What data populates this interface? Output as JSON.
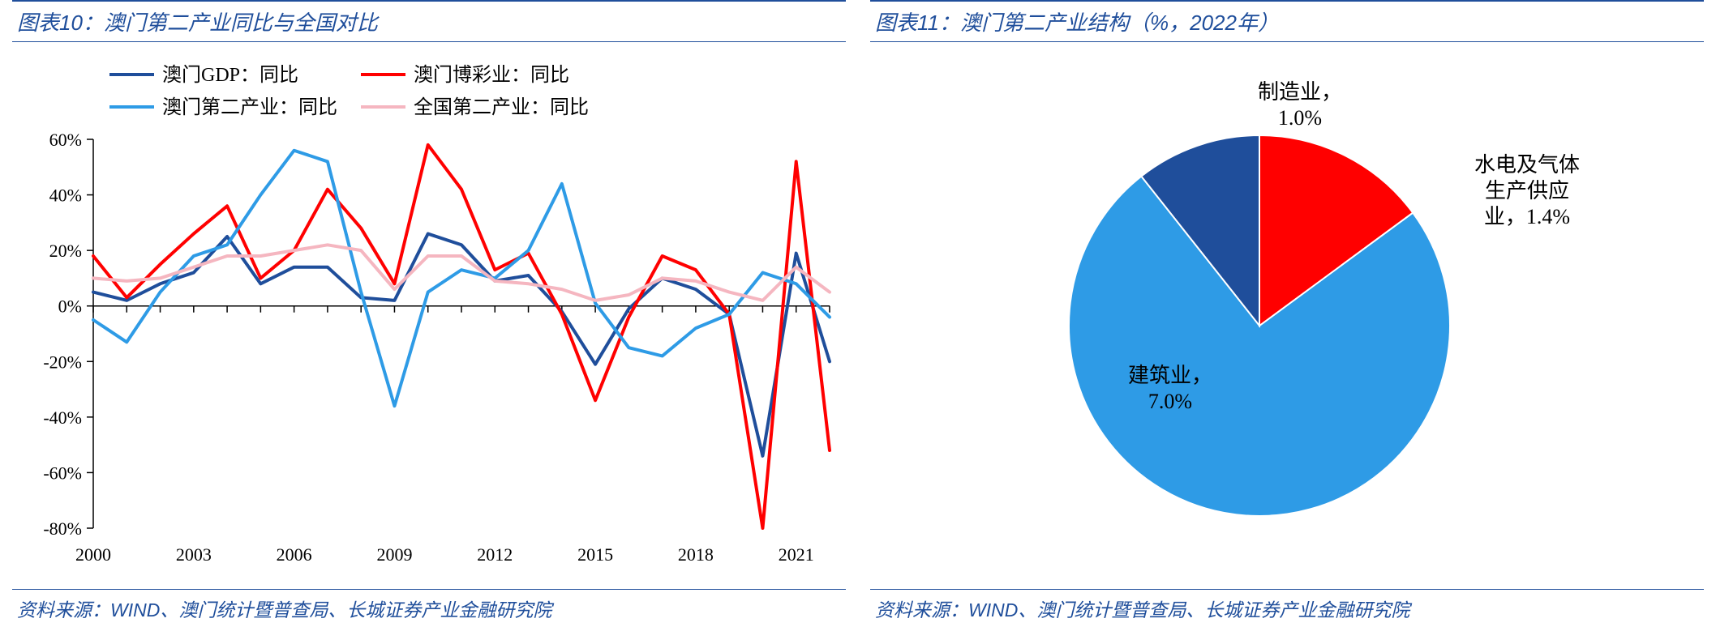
{
  "left": {
    "title": "图表10：澳门第二产业同比与全国对比",
    "source_label": "资料来源：",
    "source": "WIND、澳门统计暨普查局、长城证券产业金融研究院",
    "chart": {
      "type": "line",
      "ylim": [
        -80,
        60
      ],
      "ytick_step": 20,
      "y_suffix": "%",
      "xlim": [
        2000,
        2022
      ],
      "xticks": [
        2000,
        2003,
        2006,
        2009,
        2012,
        2015,
        2018,
        2021
      ],
      "background_color": "#ffffff",
      "axis_color": "#000000",
      "tick_color": "#000000",
      "series": [
        {
          "name": "澳门GDP：同比",
          "color": "#1f4e9b",
          "width": 4,
          "data": [
            {
              "x": 2000,
              "y": 5
            },
            {
              "x": 2001,
              "y": 2
            },
            {
              "x": 2002,
              "y": 8
            },
            {
              "x": 2003,
              "y": 12
            },
            {
              "x": 2004,
              "y": 25
            },
            {
              "x": 2005,
              "y": 8
            },
            {
              "x": 2006,
              "y": 14
            },
            {
              "x": 2007,
              "y": 14
            },
            {
              "x": 2008,
              "y": 3
            },
            {
              "x": 2009,
              "y": 2
            },
            {
              "x": 2010,
              "y": 26
            },
            {
              "x": 2011,
              "y": 22
            },
            {
              "x": 2012,
              "y": 9
            },
            {
              "x": 2013,
              "y": 11
            },
            {
              "x": 2014,
              "y": -2
            },
            {
              "x": 2015,
              "y": -21
            },
            {
              "x": 2016,
              "y": -1
            },
            {
              "x": 2017,
              "y": 10
            },
            {
              "x": 2018,
              "y": 6
            },
            {
              "x": 2019,
              "y": -3
            },
            {
              "x": 2020,
              "y": -54
            },
            {
              "x": 2021,
              "y": 19
            },
            {
              "x": 2022,
              "y": -20
            }
          ]
        },
        {
          "name": "澳门博彩业：同比",
          "color": "#ff0000",
          "width": 4,
          "data": [
            {
              "x": 2000,
              "y": 18
            },
            {
              "x": 2001,
              "y": 3
            },
            {
              "x": 2002,
              "y": 15
            },
            {
              "x": 2003,
              "y": 26
            },
            {
              "x": 2004,
              "y": 36
            },
            {
              "x": 2005,
              "y": 10
            },
            {
              "x": 2006,
              "y": 20
            },
            {
              "x": 2007,
              "y": 42
            },
            {
              "x": 2008,
              "y": 28
            },
            {
              "x": 2009,
              "y": 8
            },
            {
              "x": 2010,
              "y": 58
            },
            {
              "x": 2011,
              "y": 42
            },
            {
              "x": 2012,
              "y": 13
            },
            {
              "x": 2013,
              "y": 19
            },
            {
              "x": 2014,
              "y": -3
            },
            {
              "x": 2015,
              "y": -34
            },
            {
              "x": 2016,
              "y": -4
            },
            {
              "x": 2017,
              "y": 18
            },
            {
              "x": 2018,
              "y": 13
            },
            {
              "x": 2019,
              "y": -3
            },
            {
              "x": 2020,
              "y": -80
            },
            {
              "x": 2021,
              "y": 52
            },
            {
              "x": 2022,
              "y": -52
            }
          ]
        },
        {
          "name": "澳门第二产业：同比",
          "color": "#2e9be6",
          "width": 4,
          "data": [
            {
              "x": 2000,
              "y": -5
            },
            {
              "x": 2001,
              "y": -13
            },
            {
              "x": 2002,
              "y": 5
            },
            {
              "x": 2003,
              "y": 18
            },
            {
              "x": 2004,
              "y": 22
            },
            {
              "x": 2005,
              "y": 40
            },
            {
              "x": 2006,
              "y": 56
            },
            {
              "x": 2007,
              "y": 52
            },
            {
              "x": 2008,
              "y": 5
            },
            {
              "x": 2009,
              "y": -36
            },
            {
              "x": 2010,
              "y": 5
            },
            {
              "x": 2011,
              "y": 13
            },
            {
              "x": 2012,
              "y": 10
            },
            {
              "x": 2013,
              "y": 20
            },
            {
              "x": 2014,
              "y": 44
            },
            {
              "x": 2015,
              "y": 1
            },
            {
              "x": 2016,
              "y": -15
            },
            {
              "x": 2017,
              "y": -18
            },
            {
              "x": 2018,
              "y": -8
            },
            {
              "x": 2019,
              "y": -3
            },
            {
              "x": 2020,
              "y": 12
            },
            {
              "x": 2021,
              "y": 8
            },
            {
              "x": 2022,
              "y": -4
            }
          ]
        },
        {
          "name": "全国第二产业：同比",
          "color": "#f5b6c0",
          "width": 4,
          "data": [
            {
              "x": 2000,
              "y": 10
            },
            {
              "x": 2001,
              "y": 9
            },
            {
              "x": 2002,
              "y": 10
            },
            {
              "x": 2003,
              "y": 14
            },
            {
              "x": 2004,
              "y": 18
            },
            {
              "x": 2005,
              "y": 18
            },
            {
              "x": 2006,
              "y": 20
            },
            {
              "x": 2007,
              "y": 22
            },
            {
              "x": 2008,
              "y": 20
            },
            {
              "x": 2009,
              "y": 6
            },
            {
              "x": 2010,
              "y": 18
            },
            {
              "x": 2011,
              "y": 18
            },
            {
              "x": 2012,
              "y": 9
            },
            {
              "x": 2013,
              "y": 8
            },
            {
              "x": 2014,
              "y": 6
            },
            {
              "x": 2015,
              "y": 2
            },
            {
              "x": 2016,
              "y": 4
            },
            {
              "x": 2017,
              "y": 10
            },
            {
              "x": 2018,
              "y": 9
            },
            {
              "x": 2019,
              "y": 5
            },
            {
              "x": 2020,
              "y": 2
            },
            {
              "x": 2021,
              "y": 14
            },
            {
              "x": 2022,
              "y": 5
            }
          ]
        }
      ]
    }
  },
  "right": {
    "title": "图表11：澳门第二产业结构（%，2022年）",
    "source_label": "资料来源：",
    "source": "WIND、澳门统计暨普查局、长城证券产业金融研究院",
    "chart": {
      "type": "pie",
      "background_color": "#ffffff",
      "slices": [
        {
          "name": "建筑业",
          "value": 7.0,
          "color": "#2e9be6",
          "label_line1": "建筑业，",
          "label_line2": "7.0%"
        },
        {
          "name": "制造业",
          "value": 1.0,
          "color": "#1f4e9b",
          "label_line1": "制造业，",
          "label_line2": "1.0%"
        },
        {
          "name": "水电及气体生产供应业",
          "value": 1.4,
          "color": "#ff0000",
          "label_line1a": "水电及气体",
          "label_line1b": "生产供应",
          "label_line2": "业，1.4%"
        }
      ]
    }
  }
}
